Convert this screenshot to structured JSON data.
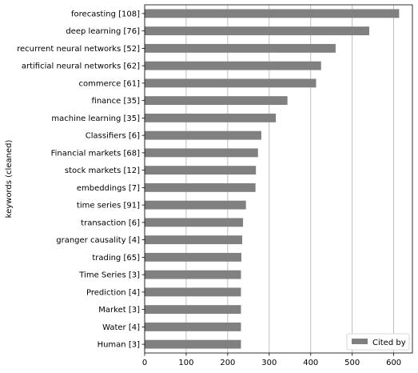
{
  "chart_data": {
    "type": "bar",
    "orientation": "horizontal",
    "categories": [
      "forecasting [108]",
      "deep learning [76]",
      "recurrent neural networks [52]",
      "artificial neural networks [62]",
      "commerce [61]",
      "finance [35]",
      "machine learning [35]",
      "Classifiers [6]",
      "Financial markets [68]",
      "stock markets [12]",
      "embeddings [7]",
      "time series [91]",
      "transaction [6]",
      "granger causality [4]",
      "trading [65]",
      "Time Series [3]",
      "Prediction [4]",
      "Market [3]",
      "Water [4]",
      "Human [3]"
    ],
    "series": [
      {
        "name": "Cited by",
        "color": "#808080",
        "values": [
          613,
          541,
          460,
          425,
          413,
          344,
          316,
          281,
          273,
          268,
          267,
          244,
          237,
          235,
          233,
          232,
          232,
          232,
          232,
          232
        ]
      }
    ],
    "xlabel": "",
    "ylabel": "keywords (cleaned)",
    "xlim": [
      0,
      645
    ],
    "xticks": [
      0,
      100,
      200,
      300,
      400,
      500,
      600
    ],
    "grid": "vertical",
    "grid_color": "#b0b0b0",
    "legend_position": "lower-right"
  }
}
